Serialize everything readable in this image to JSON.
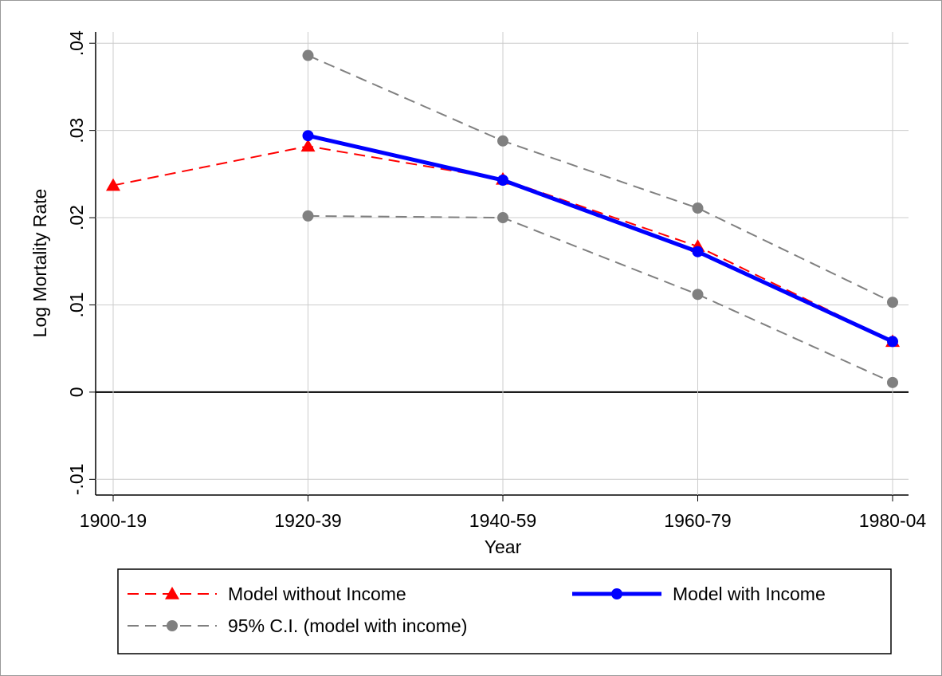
{
  "chart_data": {
    "type": "line",
    "categories": [
      "1900-19",
      "1920-39",
      "1940-59",
      "1960-79",
      "1980-04"
    ],
    "x_label": "Year",
    "y_label": "Log Mortality Rate",
    "ylim": [
      -0.0118,
      0.0413
    ],
    "yticks": [
      {
        "value": -0.01,
        "label": "-.01"
      },
      0,
      {
        "value": 0.01,
        "label": ".01"
      },
      {
        "value": 0.02,
        "label": ".02"
      },
      {
        "value": 0.03,
        "label": ".03"
      },
      {
        "value": 0.04,
        "label": ".04"
      }
    ],
    "grid": true,
    "zero_line": true,
    "series": [
      {
        "name": "Model without Income",
        "color": "#ff0000",
        "marker": "triangle",
        "dash": true,
        "values": [
          0.0237,
          0.0282,
          0.0244,
          0.0167,
          0.0058
        ]
      },
      {
        "name": "Model with Income",
        "color": "#0000ff",
        "marker": "circle",
        "dash": false,
        "values": [
          null,
          0.0294,
          0.0243,
          0.0161,
          0.0058
        ]
      },
      {
        "name": "95% C.I. (model with income)",
        "color": "#808080",
        "marker": "circle",
        "dash": true,
        "upper": [
          null,
          0.0386,
          0.0288,
          0.0211,
          0.0103
        ],
        "lower": [
          null,
          0.0202,
          0.02,
          0.0112,
          0.0011
        ]
      }
    ]
  }
}
